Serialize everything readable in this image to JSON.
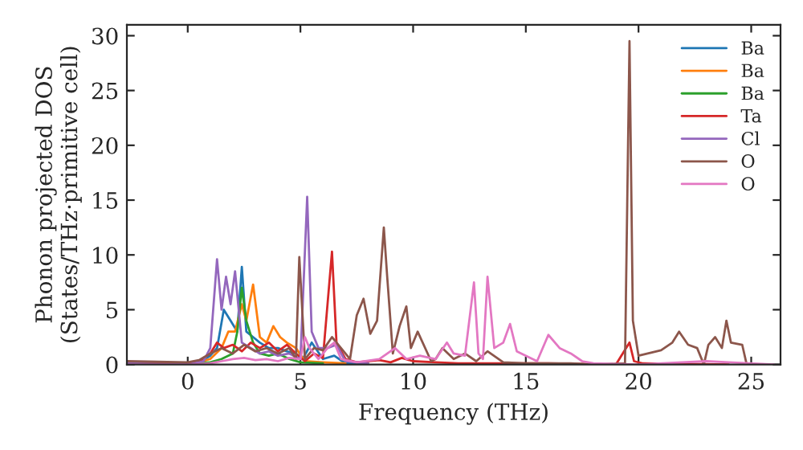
{
  "chart_data": {
    "type": "line",
    "xlabel": "Frequency (THz)",
    "ylabel": "Phonon projected DOS\n(States/THz·primitive cell)",
    "xlim": [
      -2.7,
      26.3
    ],
    "ylim": [
      0,
      31
    ],
    "xticks": [
      0,
      5,
      10,
      15,
      20,
      25
    ],
    "yticks": [
      0,
      5,
      10,
      15,
      20,
      25,
      30
    ],
    "grid": false,
    "legend": "top right",
    "series": [
      {
        "name": "Ba",
        "color": "#1f77b4",
        "x": [
          -2.7,
          0,
          0.5,
          1,
          1.3,
          1.6,
          1.9,
          2.2,
          2.4,
          2.6,
          2.9,
          3.2,
          3.6,
          4,
          4.4,
          4.8,
          5.1,
          5.5,
          6,
          6.5,
          7,
          8
        ],
        "values": [
          0.1,
          0.1,
          0.2,
          0.8,
          1.5,
          5,
          4,
          3,
          8.9,
          3,
          2.5,
          2,
          1.5,
          1.5,
          1.2,
          1,
          0.5,
          2,
          0.5,
          0.8,
          0.1,
          0.1
        ]
      },
      {
        "name": "Ba",
        "color": "#ff7f0e",
        "x": [
          -2.7,
          0,
          0.5,
          1,
          1.5,
          1.8,
          2.1,
          2.4,
          2.6,
          2.9,
          3.2,
          3.5,
          3.8,
          4.1,
          4.4,
          4.8,
          5.2,
          6,
          7
        ],
        "values": [
          0.1,
          0.1,
          0.2,
          0.5,
          1.5,
          3,
          3,
          5.5,
          4,
          7.3,
          2.5,
          2,
          3.5,
          2.5,
          2,
          1.5,
          0.3,
          0.2,
          0.1
        ]
      },
      {
        "name": "Ba",
        "color": "#2ca02c",
        "x": [
          -2.7,
          0,
          1,
          1.5,
          2,
          2.2,
          2.4,
          2.6,
          2.9,
          3.2,
          3.6,
          4,
          4.5,
          5,
          6
        ],
        "values": [
          0.1,
          0,
          0.2,
          0.5,
          1,
          3,
          7,
          4,
          2,
          1,
          0.8,
          1,
          0.5,
          0.2,
          0.1
        ]
      },
      {
        "name": "Ta",
        "color": "#d62728",
        "x": [
          -2.7,
          0,
          0.5,
          1,
          1.3,
          1.6,
          2,
          2.4,
          2.8,
          3.2,
          3.6,
          4,
          4.4,
          4.8,
          5.2,
          5.6,
          6,
          6.4,
          6.6,
          7,
          7.5,
          8.5,
          9,
          9.5,
          10,
          11,
          12,
          14,
          16,
          19,
          19.6,
          19.8,
          20.2,
          24
        ],
        "values": [
          0.1,
          0.1,
          0.3,
          1,
          2,
          1.5,
          1.8,
          1.2,
          2,
          1.5,
          2,
          1.2,
          1.8,
          1,
          0.3,
          1,
          0.6,
          10.3,
          2,
          0.5,
          0.2,
          0.4,
          0.2,
          0.6,
          0.3,
          0.2,
          0.1,
          0.1,
          0.1,
          0,
          2,
          0.3,
          0.1,
          0
        ]
      },
      {
        "name": "Cl",
        "color": "#9467bd",
        "x": [
          -2.7,
          0,
          0.7,
          1,
          1.3,
          1.5,
          1.7,
          1.9,
          2.1,
          2.4,
          2.8,
          3.2,
          3.6,
          4,
          4.5,
          5,
          5.3,
          5.5,
          5.8,
          6.2,
          6.6,
          7,
          8
        ],
        "values": [
          0.1,
          0,
          0.3,
          1.5,
          9.6,
          5,
          8,
          5.5,
          8.5,
          2,
          1.5,
          1,
          1.2,
          0.8,
          1,
          0.5,
          15.3,
          3,
          1.5,
          1.5,
          1.8,
          0.3,
          0.1
        ]
      },
      {
        "name": "O",
        "color": "#8c564b",
        "x": [
          -2.7,
          0,
          0.5,
          1,
          1.5,
          2,
          2.5,
          3,
          3.5,
          4,
          4.5,
          4.8,
          4.95,
          5.2,
          5.6,
          6,
          6.4,
          6.8,
          7.2,
          7.5,
          7.8,
          8.1,
          8.4,
          8.7,
          8.85,
          9.1,
          9.4,
          9.7,
          9.9,
          10.2,
          10.8,
          11,
          11.3,
          11.8,
          12.3,
          12.8,
          13.3,
          14,
          15,
          17,
          18,
          19.4,
          19.6,
          19.75,
          20,
          21,
          21.5,
          21.8,
          22.2,
          22.6,
          22.9,
          23.1,
          23.4,
          23.7,
          23.9,
          24.1,
          24.6,
          24.8
        ],
        "values": [
          0.3,
          0.2,
          0.4,
          1,
          1.5,
          1,
          1.8,
          1.2,
          1.5,
          1,
          1.5,
          0.5,
          9.8,
          0.5,
          1.5,
          1.3,
          2.5,
          1.5,
          0.5,
          4.5,
          6,
          2.8,
          4,
          12.5,
          8,
          1,
          3.5,
          5.3,
          1.5,
          3,
          0.3,
          0.5,
          1.5,
          0.5,
          1,
          0.3,
          1.2,
          0.2,
          0.1,
          0.1,
          0,
          0.1,
          29.5,
          4,
          0.8,
          1.3,
          2,
          3,
          1.8,
          1.5,
          0,
          1.8,
          2.5,
          1.5,
          4,
          2,
          1.8,
          0
        ]
      },
      {
        "name": "O",
        "color": "#e377c2",
        "x": [
          -2.7,
          0,
          1,
          1.5,
          2,
          2.5,
          3,
          3.5,
          4,
          4.5,
          5,
          5.2,
          5.4,
          5.8,
          6.2,
          6.5,
          6.8,
          7.5,
          8.5,
          9.2,
          9.7,
          10.3,
          11,
          11.5,
          11.8,
          12.3,
          12.7,
          12.9,
          13.1,
          13.3,
          13.6,
          14,
          14.3,
          14.6,
          15,
          15.5,
          16,
          16.5,
          17,
          17.5,
          18,
          20,
          23,
          24,
          26
        ],
        "values": [
          0,
          0,
          0.1,
          0.3,
          0.5,
          0.6,
          0.4,
          0.5,
          0.3,
          0.6,
          0.5,
          2.5,
          1.5,
          0.5,
          1.5,
          2,
          0.5,
          0.2,
          0.5,
          1.5,
          0.5,
          0.8,
          0.5,
          2,
          1,
          0.8,
          7.5,
          1,
          0.5,
          8,
          1.5,
          2,
          3.7,
          1.2,
          0.8,
          0.3,
          2.7,
          1.5,
          1,
          0.3,
          0.1,
          0,
          0.3,
          0.2,
          0
        ]
      }
    ]
  }
}
